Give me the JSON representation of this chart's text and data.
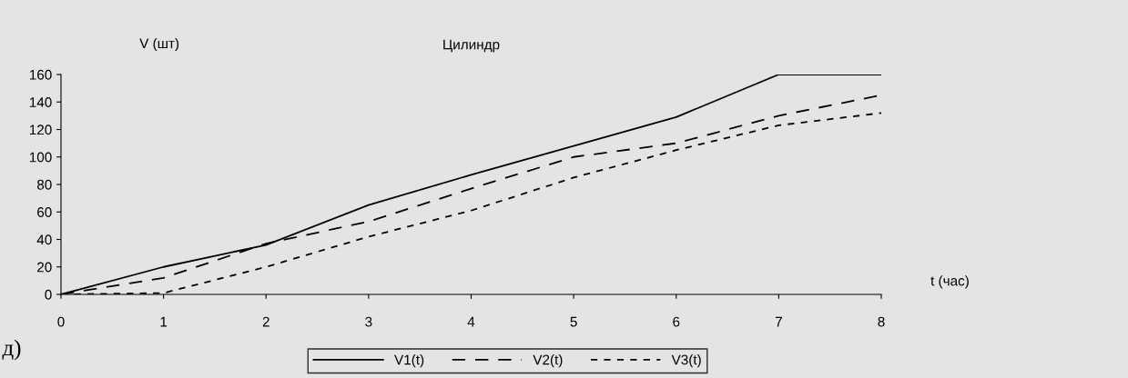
{
  "chart_data": {
    "type": "line",
    "title": "Цилиндр",
    "xlabel": "t (час)",
    "ylabel": "V (шт)",
    "x": [
      0,
      1,
      2,
      3,
      4,
      5,
      6,
      7,
      8
    ],
    "series": [
      {
        "name": "V1(t)",
        "color": "#000000",
        "line_style": "solid",
        "values": [
          0,
          20,
          36,
          65,
          87,
          108,
          129,
          160,
          160
        ]
      },
      {
        "name": "V2(t)",
        "color": "#000000",
        "line_style": "dashed",
        "values": [
          0,
          12,
          37,
          53,
          77,
          100,
          110,
          130,
          145
        ]
      },
      {
        "name": "V3(t)",
        "color": "#000000",
        "line_style": "dotted",
        "values": [
          0,
          1,
          20,
          42,
          61,
          85,
          105,
          123,
          132
        ]
      }
    ],
    "xlim": [
      0,
      8
    ],
    "xticks": [
      0,
      1,
      2,
      3,
      4,
      5,
      6,
      7,
      8
    ],
    "ylim": [
      0,
      160
    ],
    "yticks": [
      0,
      20,
      40,
      60,
      80,
      100,
      120,
      140,
      160
    ],
    "grid": false,
    "legend": "bottom",
    "marker": "none",
    "annotations": [
      "д)"
    ]
  }
}
